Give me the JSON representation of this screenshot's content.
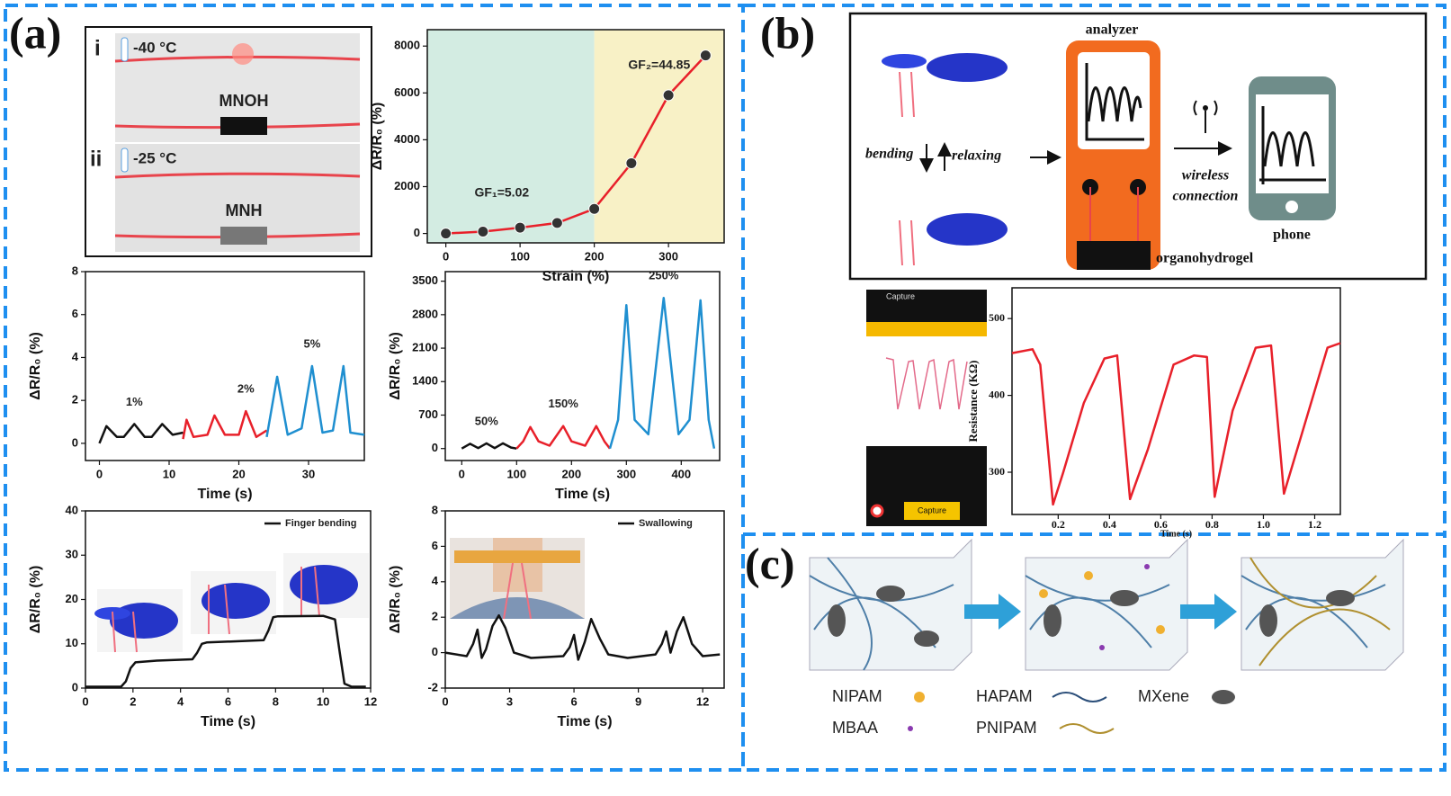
{
  "panels": [
    "(a)",
    "(b)",
    "(c)"
  ],
  "photos": [
    {
      "index": "i",
      "temperature": "-40 °C",
      "sample": "MNOH"
    },
    {
      "index": "ii",
      "temperature": "-25 °C",
      "sample": "MNH"
    }
  ],
  "diagram_b": {
    "analyzer": "analyzer",
    "bending": "bending",
    "relaxing": "relaxing",
    "wireless": [
      "wireless",
      "connection"
    ],
    "phone": "phone",
    "organohydrogel": "organohydrogel"
  },
  "phone_app": {
    "title": "Capture",
    "button": "Capture"
  },
  "legend_c": [
    "NIPAM",
    "MBAA",
    "HAPAM",
    "PNIPAM",
    "MXene"
  ],
  "chart_data": [
    {
      "type": "line",
      "markers": true,
      "x_label": "Strain (%)",
      "y_label": "ΔR/R₀ (%)",
      "annotations": [
        "GF₁=5.02",
        "GF₂=44.85"
      ],
      "regions": [
        {
          "x": [
            -25,
            200
          ],
          "color": "#d3ece2"
        },
        {
          "x": [
            200,
            375
          ],
          "color": "#f8f1c6"
        }
      ],
      "series": [
        {
          "color": "#e8202a",
          "x": [
            0,
            50,
            100,
            150,
            200,
            250,
            300,
            350
          ],
          "values": [
            0,
            80,
            250,
            450,
            1050,
            3000,
            5900,
            7600
          ]
        }
      ],
      "xlim": [
        -25,
        375
      ],
      "ylim": [
        -400,
        8700
      ],
      "xticks": [
        0,
        100,
        200,
        300
      ],
      "yticks": [
        0,
        2000,
        4000,
        6000,
        8000
      ]
    },
    {
      "type": "line",
      "legend": "inline",
      "x_label": "Time (s)",
      "y_label": "ΔR/R₀ (%)",
      "series": [
        {
          "name": "1%",
          "color": "#111111",
          "x": [
            0,
            1,
            2.5,
            3.5,
            5,
            6.5,
            7.5,
            9,
            10.5,
            12
          ],
          "values": [
            0,
            0.8,
            0.3,
            0.3,
            0.9,
            0.3,
            0.3,
            0.9,
            0.4,
            0.5
          ]
        },
        {
          "name": "2%",
          "color": "#e8202a",
          "x": [
            12,
            12.5,
            13.5,
            15.5,
            16.5,
            18,
            20,
            21,
            22.5,
            24
          ],
          "values": [
            0.2,
            1.1,
            0.3,
            0.4,
            1.3,
            0.4,
            0.4,
            1.5,
            0.3,
            0.6
          ]
        },
        {
          "name": "5%",
          "color": "#1f8fd0",
          "x": [
            24,
            25.5,
            27,
            29,
            30.5,
            32,
            33.5,
            35,
            36,
            38
          ],
          "values": [
            0.3,
            3.1,
            0.4,
            0.7,
            3.6,
            0.5,
            0.6,
            3.6,
            0.5,
            0.4
          ]
        }
      ],
      "xlim": [
        -2,
        38
      ],
      "ylim": [
        -0.8,
        8
      ],
      "xticks": [
        0,
        10,
        20,
        30
      ],
      "yticks": [
        0,
        2,
        4,
        6,
        8
      ]
    },
    {
      "type": "line",
      "legend": "inline",
      "x_label": "Time (s)",
      "y_label": "ΔR/R₀ (%)",
      "series": [
        {
          "name": "50%",
          "color": "#111111",
          "x": [
            0,
            15,
            30,
            45,
            60,
            75,
            90,
            100
          ],
          "values": [
            0,
            100,
            10,
            110,
            10,
            110,
            20,
            0
          ]
        },
        {
          "name": "150%",
          "color": "#e8202a",
          "x": [
            100,
            112,
            125,
            140,
            160,
            185,
            200,
            225,
            245,
            260,
            270
          ],
          "values": [
            0,
            150,
            450,
            150,
            60,
            470,
            150,
            60,
            470,
            150,
            0
          ]
        },
        {
          "name": "250%",
          "color": "#1f8fd0",
          "x": [
            270,
            285,
            300,
            315,
            340,
            368,
            395,
            415,
            435,
            450,
            460
          ],
          "values": [
            0,
            600,
            3000,
            600,
            300,
            3150,
            300,
            600,
            3100,
            600,
            0
          ]
        }
      ],
      "xlim": [
        -30,
        470
      ],
      "ylim": [
        -250,
        3700
      ],
      "xticks": [
        0,
        100,
        200,
        300,
        400
      ],
      "yticks": [
        0,
        700,
        1400,
        2100,
        2800,
        3500
      ]
    },
    {
      "type": "line",
      "legend": "upper right",
      "x_label": "Time (s)",
      "y_label": "ΔR/R₀ (%)",
      "series": [
        {
          "name": "Finger bending",
          "color": "#111111",
          "x": [
            0,
            1.5,
            1.7,
            1.9,
            2.1,
            3,
            4.5,
            4.7,
            4.9,
            5.1,
            7.5,
            7.7,
            7.9,
            8.1,
            10,
            10.5,
            10.7,
            10.9,
            11.2,
            11.8
          ],
          "values": [
            0.3,
            0.3,
            1.5,
            4.5,
            5.8,
            6.2,
            6.5,
            8,
            10,
            10.3,
            10.8,
            13,
            16,
            16.2,
            16.3,
            15.5,
            8,
            1,
            0.3,
            0.3
          ]
        }
      ],
      "xlim": [
        0,
        12
      ],
      "ylim": [
        0,
        40
      ],
      "xticks": [
        0,
        2,
        4,
        6,
        8,
        10,
        12
      ],
      "yticks": [
        0,
        10,
        20,
        30,
        40
      ]
    },
    {
      "type": "line",
      "legend": "upper right",
      "x_label": "Time (s)",
      "y_label": "ΔR/R₀ (%)",
      "series": [
        {
          "name": "Swallowing",
          "color": "#111111",
          "x": [
            0,
            1,
            1.3,
            1.5,
            1.7,
            1.9,
            2.2,
            2.5,
            2.8,
            3.2,
            4,
            5.5,
            5.8,
            6,
            6.2,
            6.5,
            6.8,
            7.2,
            7.6,
            8.5,
            9.8,
            10.1,
            10.3,
            10.5,
            10.8,
            11.1,
            11.5,
            12,
            12.8
          ],
          "values": [
            0,
            -0.2,
            0.5,
            1.3,
            -0.3,
            0.2,
            1.5,
            2.1,
            1.4,
            0,
            -0.3,
            -0.2,
            0.3,
            1,
            -0.4,
            0.6,
            1.9,
            0.8,
            -0.1,
            -0.3,
            -0.1,
            0.5,
            1.2,
            0,
            1.2,
            2,
            0.5,
            -0.2,
            -0.1
          ]
        }
      ],
      "xlim": [
        0,
        13
      ],
      "ylim": [
        -2,
        8
      ],
      "xticks": [
        0,
        3,
        6,
        9,
        12
      ],
      "yticks": [
        -2,
        0,
        2,
        4,
        6,
        8
      ]
    },
    {
      "type": "line",
      "x_label": "Time (s)",
      "y_label": "Resistance (KΩ)",
      "series": [
        {
          "color": "#e8202a",
          "x": [
            0.02,
            0.1,
            0.13,
            0.18,
            0.22,
            0.3,
            0.38,
            0.43,
            0.48,
            0.55,
            0.65,
            0.73,
            0.78,
            0.81,
            0.88,
            0.97,
            1.03,
            1.08,
            1.15,
            1.25,
            1.3
          ],
          "values": [
            455,
            460,
            440,
            258,
            300,
            390,
            448,
            452,
            265,
            330,
            440,
            452,
            450,
            268,
            380,
            462,
            465,
            272,
            350,
            462,
            468
          ]
        }
      ],
      "xlim": [
        0.02,
        1.3
      ],
      "ylim": [
        245,
        540
      ],
      "xticks": [
        0.2,
        0.4,
        0.6,
        0.8,
        {
          "value": 1,
          "label": "1.0"
        },
        1.2
      ],
      "yticks": [
        300,
        400,
        500
      ]
    }
  ]
}
